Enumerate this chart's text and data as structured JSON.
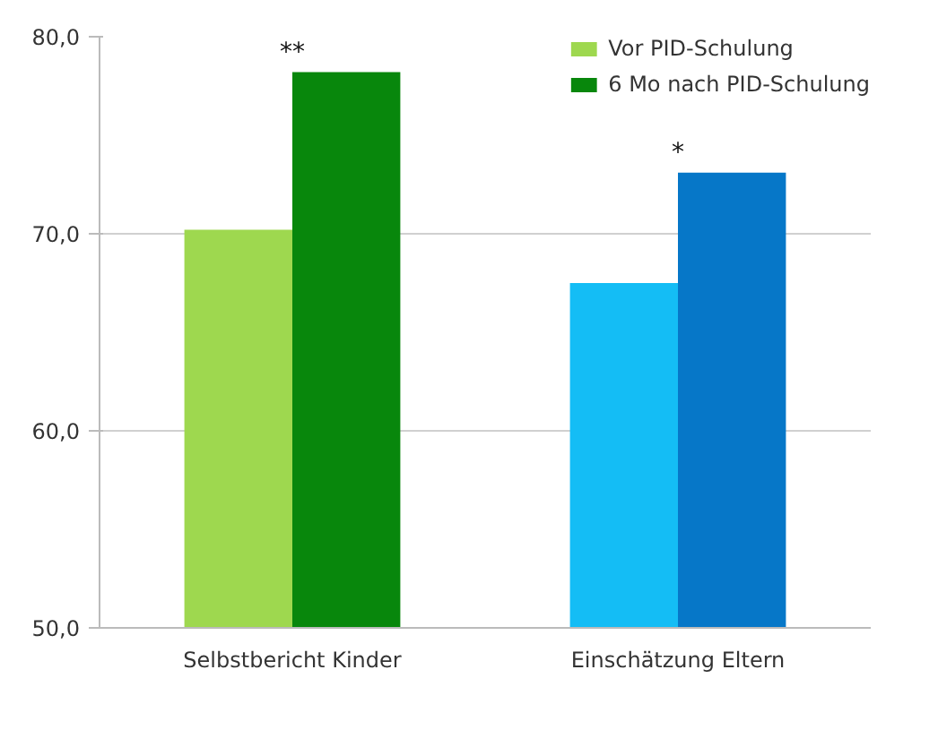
{
  "chart_data": {
    "type": "bar",
    "categories": [
      "Selbstbericht Kinder",
      "Einschätzung Eltern"
    ],
    "series": [
      {
        "name": "Vor PID-Schulung",
        "colors": [
          "#9ed84f",
          "#14bdf5"
        ],
        "values": [
          70.2,
          67.5
        ]
      },
      {
        "name": "6 Mo nach PID-Schulung",
        "colors": [
          "#08870c",
          "#0677c8"
        ],
        "values": [
          78.2,
          73.1
        ]
      }
    ],
    "ylim": [
      50,
      80
    ],
    "yticks": [
      {
        "value": 50,
        "label": "50,0"
      },
      {
        "value": 60,
        "label": "60,0"
      },
      {
        "value": 70,
        "label": "70,0"
      },
      {
        "value": 80,
        "label": "80,0"
      }
    ],
    "annotations": [
      "**",
      "*"
    ],
    "grid": "y",
    "legend": "top right"
  }
}
